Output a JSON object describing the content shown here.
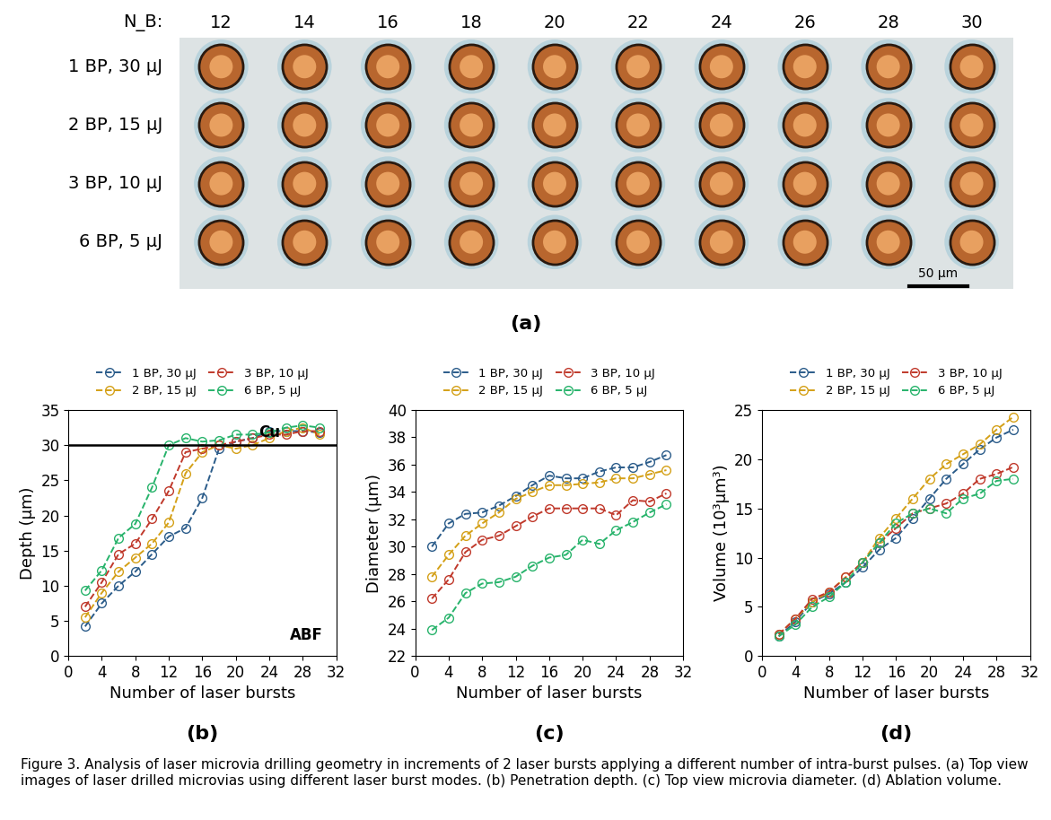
{
  "panel_a": {
    "label": "(a)",
    "column_header": "N_B:",
    "columns": [
      12,
      14,
      16,
      18,
      20,
      22,
      24,
      26,
      28,
      30
    ],
    "rows": [
      "1 BP, 30 μJ",
      "2 BP, 15 μJ",
      "3 BP, 10 μJ",
      "6 BP, 5 μJ"
    ],
    "scale_bar": "50 μm"
  },
  "chart_data": [
    {
      "type": "line",
      "label": "(b)",
      "xlabel": "Number of laser bursts",
      "ylabel": "Depth (μm)",
      "x": [
        2,
        4,
        6,
        8,
        10,
        12,
        14,
        16,
        18,
        20,
        22,
        24,
        26,
        28,
        30
      ],
      "xlim": [
        0,
        32
      ],
      "xticks": [
        0,
        4,
        8,
        12,
        16,
        20,
        24,
        28,
        32
      ],
      "ylim": [
        0,
        35
      ],
      "yticks": [
        0,
        5,
        10,
        15,
        20,
        25,
        30,
        35
      ],
      "legend": "lower center",
      "marker": "o",
      "line_style": "dashed",
      "hline": {
        "value": 30,
        "label": "Cu"
      },
      "annotations": [
        "ABF"
      ],
      "series": [
        {
          "name": "1 BP, 30 μJ",
          "color": "#2b5c8a",
          "values": [
            4.2,
            7.5,
            10,
            12,
            14.5,
            17,
            18.2,
            22.5,
            29.5,
            30.5,
            31,
            32,
            32,
            32,
            31.8
          ]
        },
        {
          "name": "2 BP, 15 μJ",
          "color": "#d4a017",
          "values": [
            5.5,
            9,
            12,
            14,
            16,
            19,
            26,
            29,
            30,
            29.5,
            30,
            31,
            32,
            32.5,
            31.5
          ]
        },
        {
          "name": "3 BP, 10 μJ",
          "color": "#c0392b",
          "values": [
            7,
            10.5,
            14.5,
            16,
            19.5,
            23.5,
            29,
            29.5,
            30,
            30.5,
            31,
            31.5,
            31.5,
            32,
            32
          ]
        },
        {
          "name": "6 BP, 5 μJ",
          "color": "#27b36b",
          "values": [
            9.3,
            12.2,
            16.8,
            18.8,
            24,
            30,
            31,
            30.5,
            30.7,
            31.5,
            31.5,
            31.8,
            32.5,
            32.8,
            32.5
          ]
        }
      ]
    },
    {
      "type": "line",
      "label": "(c)",
      "xlabel": "Number of laser bursts",
      "ylabel": "Diameter (μm)",
      "x": [
        2,
        4,
        6,
        8,
        10,
        12,
        14,
        16,
        18,
        20,
        22,
        24,
        26,
        28,
        30
      ],
      "xlim": [
        0,
        32
      ],
      "xticks": [
        0,
        4,
        8,
        12,
        16,
        20,
        24,
        28,
        32
      ],
      "ylim": [
        22,
        40
      ],
      "yticks": [
        22,
        24,
        26,
        28,
        30,
        32,
        34,
        36,
        38,
        40
      ],
      "legend": "lower center",
      "marker": "o",
      "line_style": "dashed",
      "series": [
        {
          "name": "1 BP, 30 μJ",
          "color": "#2b5c8a",
          "values": [
            30,
            31.7,
            32.4,
            32.5,
            33,
            33.7,
            34.5,
            35.2,
            35,
            35,
            35.5,
            35.8,
            35.8,
            36.2,
            36.7
          ]
        },
        {
          "name": "2 BP, 15 μJ",
          "color": "#d4a017",
          "values": [
            27.8,
            29.4,
            30.8,
            31.7,
            32.5,
            33.5,
            34,
            34.5,
            34.5,
            34.6,
            34.7,
            35,
            35,
            35.3,
            35.6
          ]
        },
        {
          "name": "3 BP, 10 μJ",
          "color": "#c0392b",
          "values": [
            26.2,
            27.6,
            29.6,
            30.5,
            30.8,
            31.5,
            32.2,
            32.8,
            32.8,
            32.8,
            32.8,
            32.3,
            33.4,
            33.3,
            33.9
          ]
        },
        {
          "name": "6 BP, 5 μJ",
          "color": "#27b36b",
          "values": [
            23.9,
            24.8,
            26.6,
            27.3,
            27.4,
            27.8,
            28.6,
            29.2,
            29.4,
            30.5,
            30.2,
            31.2,
            31.8,
            32.5,
            33.1
          ]
        }
      ]
    },
    {
      "type": "line",
      "label": "(d)",
      "xlabel": "Number of laser bursts",
      "ylabel": "Volume (10³μm³)",
      "x": [
        2,
        4,
        6,
        8,
        10,
        12,
        14,
        16,
        18,
        20,
        22,
        24,
        26,
        28,
        30
      ],
      "xlim": [
        0,
        32
      ],
      "xticks": [
        0,
        4,
        8,
        12,
        16,
        20,
        24,
        28,
        32
      ],
      "ylim": [
        0,
        25
      ],
      "yticks": [
        0,
        5,
        10,
        15,
        20,
        25
      ],
      "legend": "lower center",
      "marker": "o",
      "line_style": "dashed",
      "series": [
        {
          "name": "1 BP, 30 μJ",
          "color": "#2b5c8a",
          "values": [
            2,
            3.5,
            5.5,
            6.3,
            7.5,
            9,
            10.8,
            12,
            14,
            16,
            18,
            19.5,
            21,
            22.2,
            23
          ]
        },
        {
          "name": "2 BP, 15 μJ",
          "color": "#d4a017",
          "values": [
            2.2,
            3.8,
            5.5,
            6.5,
            8,
            9.5,
            12,
            14,
            16,
            18,
            19.5,
            20.5,
            21.5,
            23,
            24.3
          ]
        },
        {
          "name": "3 BP, 10 μJ",
          "color": "#c0392b",
          "values": [
            2.2,
            3.8,
            5.8,
            6.5,
            8,
            9.5,
            11.5,
            13,
            14.5,
            15,
            15.5,
            16.5,
            18,
            18.5,
            19.2
          ]
        },
        {
          "name": "6 BP, 5 μJ",
          "color": "#27b36b",
          "values": [
            2,
            3.2,
            5,
            6,
            7.5,
            9.5,
            11.5,
            13.5,
            14.5,
            15,
            14.5,
            16,
            16.5,
            17.8,
            18
          ]
        }
      ]
    }
  ],
  "caption": "Figure 3. Analysis of laser microvia drilling geometry in increments of 2 laser bursts applying a different number of intra-burst pulses. (a) Top view images of laser drilled microvias using different laser burst modes. (b) Penetration depth. (c) Top view microvia diameter. (d) Ablation volume."
}
